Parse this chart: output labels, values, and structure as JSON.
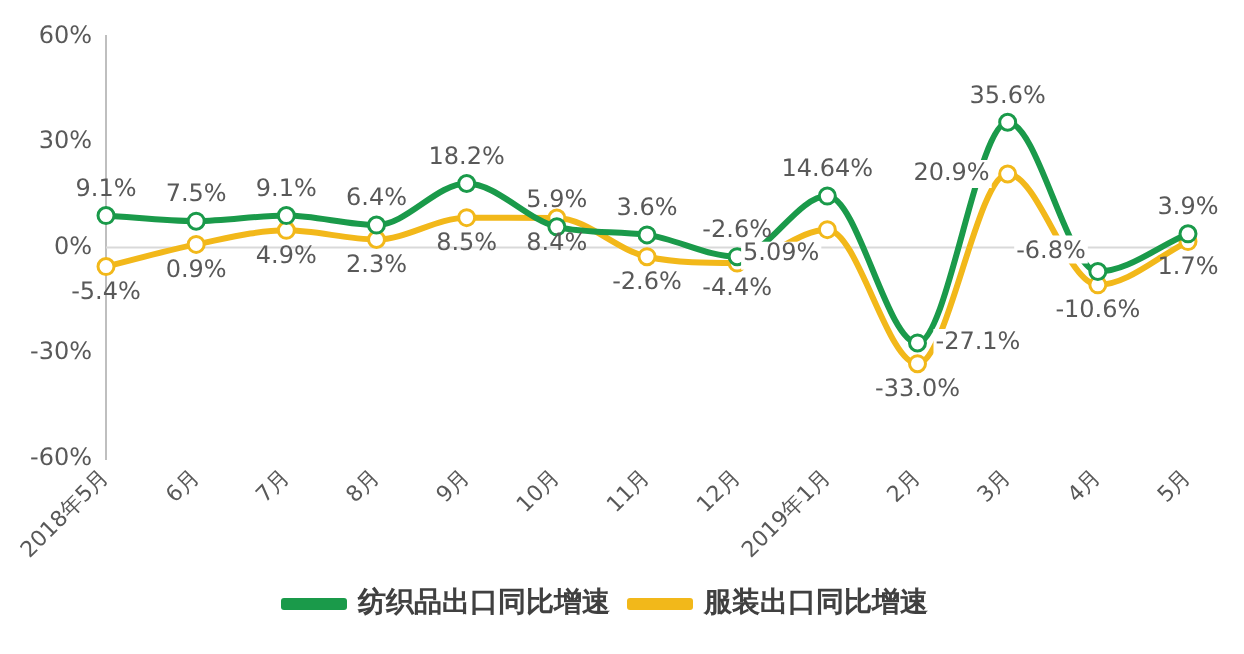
{
  "chart_data": {
    "type": "line",
    "categories": [
      "2018年5月",
      "6月",
      "7月",
      "8月",
      "9月",
      "10月",
      "11月",
      "12月",
      "2019年1月",
      "2月",
      "3月",
      "4月",
      "5月"
    ],
    "series": [
      {
        "name": "纺织品出口同比增速",
        "color": "#1a9a4a",
        "values": [
          9.1,
          7.5,
          9.1,
          6.4,
          18.2,
          5.9,
          3.6,
          -2.6,
          14.64,
          -27.1,
          35.6,
          -6.8,
          3.9
        ],
        "value_labels": [
          "9.1%",
          "7.5%",
          "9.1%",
          "6.4%",
          "18.2%",
          "5.9%",
          "3.6%",
          "-2.6%",
          "14.64%",
          "-27.1%",
          "35.6%",
          "-6.8%",
          "3.9%"
        ]
      },
      {
        "name": "服装出口同比增速",
        "color": "#f2b81a",
        "values": [
          -5.4,
          0.9,
          4.9,
          2.3,
          8.5,
          8.4,
          -2.6,
          -4.4,
          5.09,
          -33.0,
          20.9,
          -10.6,
          1.7
        ],
        "value_labels": [
          "-5.4%",
          "0.9%",
          "4.9%",
          "2.3%",
          "8.5%",
          "8.4%",
          "-2.6%",
          "-4.4%",
          "5.09%",
          "-33.0%",
          "20.9%",
          "-10.6%",
          "1.7%"
        ]
      }
    ],
    "ylim": [
      -60,
      60
    ],
    "yticks": [
      {
        "value": -60,
        "label": "-60%"
      },
      {
        "value": -30,
        "label": "-30%"
      },
      {
        "value": 0,
        "label": "0%"
      },
      {
        "value": 30,
        "label": "30%"
      },
      {
        "value": 60,
        "label": "60%"
      }
    ],
    "ref_lines": [
      {
        "axis": "y",
        "value": 0,
        "color": "#d9d9d9"
      }
    ],
    "grid": false,
    "legend": "bottom",
    "marker": "circle",
    "line_style": "solid"
  }
}
